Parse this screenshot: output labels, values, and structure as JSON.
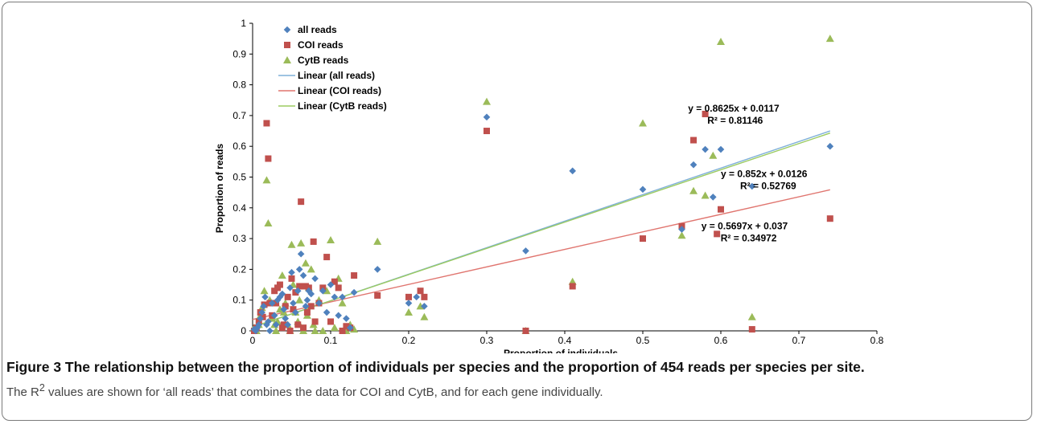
{
  "chart_data": {
    "type": "scatter",
    "xlabel": "Proportion of individuals",
    "ylabel": "Proportion of reads",
    "xlim": [
      0,
      0.8
    ],
    "ylim": [
      0,
      1
    ],
    "x_ticks": [
      "0",
      "0.1",
      "0.2",
      "0.3",
      "0.4",
      "0.5",
      "0.6",
      "0.7",
      "0.8"
    ],
    "y_ticks": [
      "0",
      "0.1",
      "0.2",
      "0.3",
      "0.4",
      "0.5",
      "0.6",
      "0.7",
      "0.8",
      "0.9",
      "1"
    ],
    "grid": false,
    "legend_position": "top-left",
    "series": [
      {
        "name": "all reads",
        "marker": "diamond",
        "color": "#4F81BD",
        "points": [
          [
            0.002,
            0.005
          ],
          [
            0.004,
            0.0
          ],
          [
            0.006,
            0.01
          ],
          [
            0.008,
            0.02
          ],
          [
            0.01,
            0.04
          ],
          [
            0.012,
            0.06
          ],
          [
            0.014,
            0.08
          ],
          [
            0.016,
            0.11
          ],
          [
            0.018,
            0.02
          ],
          [
            0.02,
            0.03
          ],
          [
            0.022,
            0.0
          ],
          [
            0.025,
            0.09
          ],
          [
            0.028,
            0.05
          ],
          [
            0.03,
            0.02
          ],
          [
            0.032,
            0.1
          ],
          [
            0.035,
            0.11
          ],
          [
            0.038,
            0.12
          ],
          [
            0.04,
            0.07
          ],
          [
            0.042,
            0.04
          ],
          [
            0.045,
            0.02
          ],
          [
            0.048,
            0.14
          ],
          [
            0.05,
            0.19
          ],
          [
            0.052,
            0.09
          ],
          [
            0.055,
            0.06
          ],
          [
            0.058,
            0.13
          ],
          [
            0.06,
            0.2
          ],
          [
            0.062,
            0.25
          ],
          [
            0.065,
            0.18
          ],
          [
            0.068,
            0.08
          ],
          [
            0.07,
            0.1
          ],
          [
            0.072,
            0.13
          ],
          [
            0.075,
            0.12
          ],
          [
            0.08,
            0.17
          ],
          [
            0.085,
            0.09
          ],
          [
            0.09,
            0.13
          ],
          [
            0.095,
            0.06
          ],
          [
            0.1,
            0.15
          ],
          [
            0.105,
            0.11
          ],
          [
            0.11,
            0.05
          ],
          [
            0.115,
            0.11
          ],
          [
            0.12,
            0.04
          ],
          [
            0.125,
            0.01
          ],
          [
            0.13,
            0.125
          ],
          [
            0.16,
            0.2
          ],
          [
            0.2,
            0.09
          ],
          [
            0.21,
            0.11
          ],
          [
            0.22,
            0.08
          ],
          [
            0.3,
            0.695
          ],
          [
            0.35,
            0.26
          ],
          [
            0.41,
            0.52
          ],
          [
            0.5,
            0.46
          ],
          [
            0.55,
            0.33
          ],
          [
            0.565,
            0.54
          ],
          [
            0.58,
            0.59
          ],
          [
            0.59,
            0.435
          ],
          [
            0.6,
            0.59
          ],
          [
            0.64,
            0.47
          ],
          [
            0.74,
            0.6
          ]
        ]
      },
      {
        "name": "COI reads",
        "marker": "square",
        "color": "#C0504D",
        "points": [
          [
            0.002,
            0.0
          ],
          [
            0.005,
            0.01
          ],
          [
            0.008,
            0.03
          ],
          [
            0.01,
            0.06
          ],
          [
            0.013,
            0.045
          ],
          [
            0.015,
            0.085
          ],
          [
            0.018,
            0.675
          ],
          [
            0.02,
            0.56
          ],
          [
            0.022,
            0.09
          ],
          [
            0.025,
            0.05
          ],
          [
            0.028,
            0.13
          ],
          [
            0.03,
            0.09
          ],
          [
            0.032,
            0.14
          ],
          [
            0.035,
            0.15
          ],
          [
            0.038,
            0.01
          ],
          [
            0.04,
            0.02
          ],
          [
            0.042,
            0.08
          ],
          [
            0.045,
            0.11
          ],
          [
            0.048,
            0.0
          ],
          [
            0.05,
            0.17
          ],
          [
            0.052,
            0.07
          ],
          [
            0.055,
            0.125
          ],
          [
            0.058,
            0.02
          ],
          [
            0.06,
            0.145
          ],
          [
            0.062,
            0.42
          ],
          [
            0.065,
            0.01
          ],
          [
            0.068,
            0.145
          ],
          [
            0.07,
            0.06
          ],
          [
            0.072,
            0.14
          ],
          [
            0.075,
            0.08
          ],
          [
            0.078,
            0.29
          ],
          [
            0.08,
            0.03
          ],
          [
            0.085,
            0.09
          ],
          [
            0.09,
            0.14
          ],
          [
            0.095,
            0.24
          ],
          [
            0.1,
            0.03
          ],
          [
            0.105,
            0.16
          ],
          [
            0.11,
            0.14
          ],
          [
            0.115,
            0.0
          ],
          [
            0.12,
            0.015
          ],
          [
            0.125,
            0.01
          ],
          [
            0.13,
            0.18
          ],
          [
            0.16,
            0.115
          ],
          [
            0.2,
            0.11
          ],
          [
            0.215,
            0.13
          ],
          [
            0.22,
            0.11
          ],
          [
            0.3,
            0.65
          ],
          [
            0.35,
            0.0
          ],
          [
            0.41,
            0.145
          ],
          [
            0.5,
            0.3
          ],
          [
            0.55,
            0.34
          ],
          [
            0.565,
            0.62
          ],
          [
            0.58,
            0.705
          ],
          [
            0.595,
            0.315
          ],
          [
            0.6,
            0.395
          ],
          [
            0.64,
            0.005
          ],
          [
            0.74,
            0.365
          ]
        ]
      },
      {
        "name": "CytB reads",
        "marker": "triangle",
        "color": "#9BBB59",
        "points": [
          [
            0.002,
            0.01
          ],
          [
            0.005,
            0.0
          ],
          [
            0.008,
            0.02
          ],
          [
            0.01,
            0.05
          ],
          [
            0.012,
            0.075
          ],
          [
            0.015,
            0.13
          ],
          [
            0.018,
            0.49
          ],
          [
            0.02,
            0.35
          ],
          [
            0.022,
            0.1
          ],
          [
            0.025,
            0.04
          ],
          [
            0.028,
            0.02
          ],
          [
            0.03,
            0.0
          ],
          [
            0.032,
            0.03
          ],
          [
            0.035,
            0.07
          ],
          [
            0.038,
            0.18
          ],
          [
            0.04,
            0.06
          ],
          [
            0.042,
            0.09
          ],
          [
            0.045,
            0.02
          ],
          [
            0.048,
            0.0
          ],
          [
            0.05,
            0.28
          ],
          [
            0.052,
            0.15
          ],
          [
            0.055,
            0.06
          ],
          [
            0.058,
            0.03
          ],
          [
            0.06,
            0.1
          ],
          [
            0.062,
            0.285
          ],
          [
            0.065,
            0.0
          ],
          [
            0.068,
            0.22
          ],
          [
            0.07,
            0.05
          ],
          [
            0.072,
            0.14
          ],
          [
            0.075,
            0.2
          ],
          [
            0.078,
            0.02
          ],
          [
            0.08,
            0.0
          ],
          [
            0.085,
            0.1
          ],
          [
            0.09,
            0.0
          ],
          [
            0.095,
            0.13
          ],
          [
            0.1,
            0.295
          ],
          [
            0.105,
            0.01
          ],
          [
            0.11,
            0.17
          ],
          [
            0.115,
            0.09
          ],
          [
            0.12,
            0.0
          ],
          [
            0.125,
            0.02
          ],
          [
            0.13,
            0.005
          ],
          [
            0.16,
            0.29
          ],
          [
            0.2,
            0.06
          ],
          [
            0.215,
            0.08
          ],
          [
            0.22,
            0.045
          ],
          [
            0.3,
            0.745
          ],
          [
            0.35,
            0.0
          ],
          [
            0.41,
            0.16
          ],
          [
            0.5,
            0.675
          ],
          [
            0.55,
            0.31
          ],
          [
            0.565,
            0.455
          ],
          [
            0.58,
            0.44
          ],
          [
            0.59,
            0.57
          ],
          [
            0.6,
            0.94
          ],
          [
            0.64,
            0.045
          ],
          [
            0.74,
            0.95
          ]
        ]
      }
    ],
    "trendlines": [
      {
        "name": "Linear (all reads)",
        "color": "#7FB0D8",
        "slope": 0.8625,
        "intercept": 0.0117,
        "x_range": [
          0,
          0.74
        ]
      },
      {
        "name": "Linear (COI reads)",
        "color": "#E0756F",
        "slope": 0.5697,
        "intercept": 0.037,
        "x_range": [
          0,
          0.74
        ]
      },
      {
        "name": "Linear (CytB reads)",
        "color": "#9BCB61",
        "slope": 0.852,
        "intercept": 0.0126,
        "x_range": [
          0,
          0.74
        ]
      }
    ],
    "annotations": [
      {
        "equation": "y = 0.8625x + 0.0117",
        "r2": "R² = 0.81146",
        "anchor_x": 0.558,
        "anchor_y": 0.713
      },
      {
        "equation": "y = 0.852x + 0.0126",
        "r2": "R² = 0.52769",
        "anchor_x": 0.6,
        "anchor_y": 0.5
      },
      {
        "equation": "y = 0.5697x + 0.037",
        "r2": "R² = 0.34972",
        "anchor_x": 0.575,
        "anchor_y": 0.33
      }
    ]
  },
  "caption": {
    "title": "Figure 3 The relationship between the proportion of individuals per species and the proportion of 454 reads per species per site.",
    "body_before_sup": "The R",
    "body_sup": "2",
    "body_after_sup": " values are shown for ‘all reads’ that combines the data for COI and CytB, and for each gene individually."
  }
}
